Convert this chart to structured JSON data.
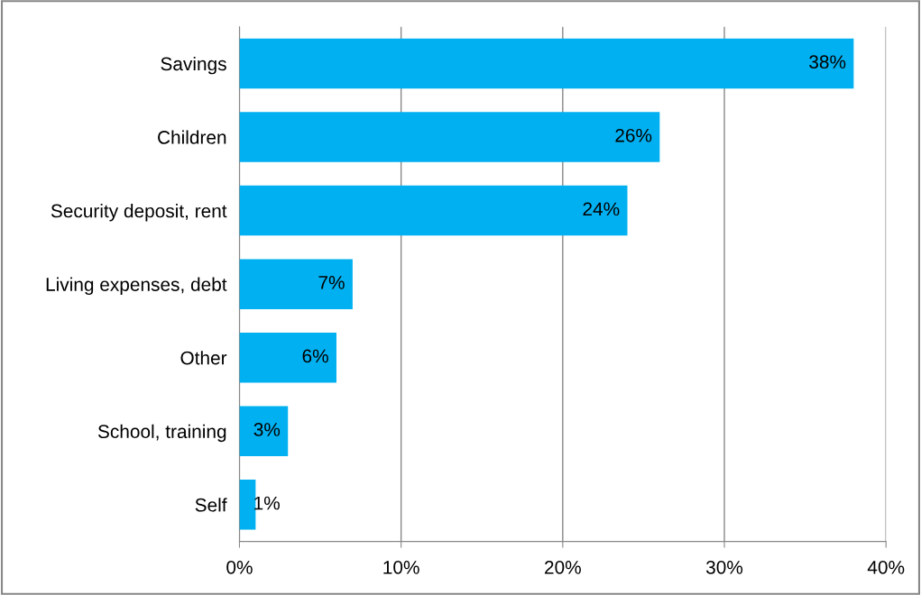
{
  "chart_data": {
    "type": "bar",
    "orientation": "horizontal",
    "categories": [
      "Savings",
      "Children",
      "Security deposit, rent",
      "Living expenses, debt",
      "Other",
      "School, training",
      "Self"
    ],
    "values": [
      38,
      26,
      24,
      7,
      6,
      3,
      1
    ],
    "value_labels": [
      "38%",
      "26%",
      "24%",
      "7%",
      "6%",
      "3%",
      "1%"
    ],
    "color": "#00b0f0",
    "xlim": [
      0,
      40
    ],
    "xticks": [
      {
        "value": 0,
        "label": "0%"
      },
      {
        "value": 10,
        "label": "10%"
      },
      {
        "value": 20,
        "label": "20%"
      },
      {
        "value": 30,
        "label": "30%"
      },
      {
        "value": 40,
        "label": "40%"
      }
    ],
    "grid": "x"
  }
}
